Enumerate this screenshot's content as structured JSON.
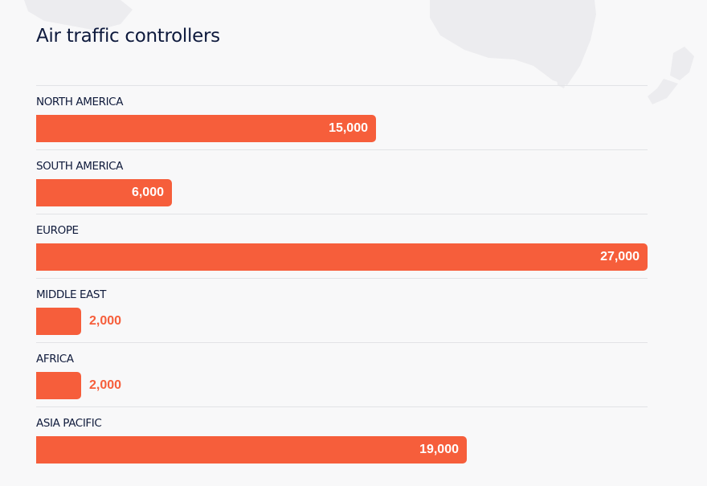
{
  "chart_data": {
    "type": "bar",
    "orientation": "horizontal",
    "title": "Air traffic controllers",
    "categories": [
      "NORTH AMERICA",
      "SOUTH AMERICA",
      "EUROPE",
      "MIDDLE EAST",
      "AFRICA",
      "ASIA PACIFIC"
    ],
    "values": [
      15000,
      6000,
      27000,
      2000,
      2000,
      19000
    ],
    "value_labels": [
      "15,000",
      "6,000",
      "27,000",
      "2,000",
      "2,000",
      "19,000"
    ],
    "xlim": [
      0,
      27000
    ],
    "bar_color": "#f65e3b",
    "title_color": "#0e1a3d",
    "grid": false,
    "legend": "none",
    "background_decoration": "world-map-silhouette"
  }
}
